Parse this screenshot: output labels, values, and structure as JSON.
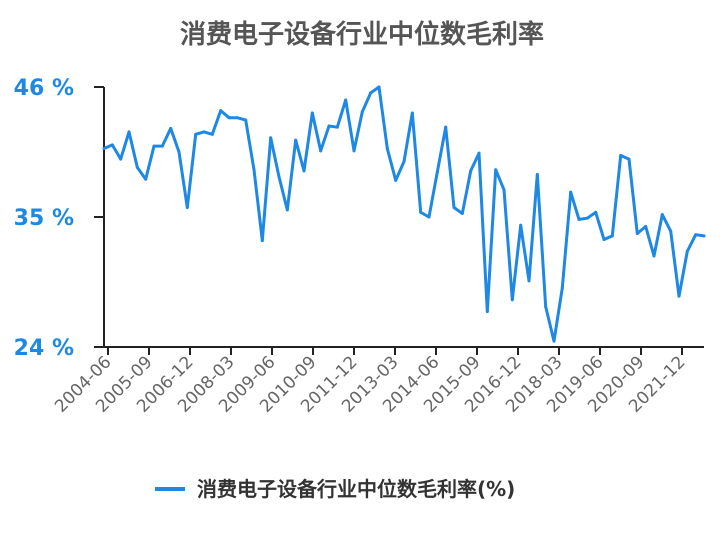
{
  "chart_data": {
    "type": "line",
    "title": "消费电子设备行业中位数毛利率",
    "xlabel": "",
    "ylabel": "",
    "ylim": [
      24,
      46
    ],
    "y_ticks": [
      "24 %",
      "35 %",
      "46 %"
    ],
    "y_tick_values": [
      24,
      35,
      46
    ],
    "x_tick_labels": [
      "2004-06",
      "2005-09",
      "2006-12",
      "2008-03",
      "2009-06",
      "2010-09",
      "2011-12",
      "2013-03",
      "2014-06",
      "2015-09",
      "2016-12",
      "2018-03",
      "2019-06",
      "2020-09",
      "2021-12"
    ],
    "grid": false,
    "legend": "bottom",
    "color": "#1e88e5",
    "series": [
      {
        "name": "消费电子设备行业中位数毛利率(%)",
        "values": [
          40.8,
          41.1,
          39.9,
          42.2,
          39.2,
          38.2,
          41.0,
          41.0,
          42.5,
          40.5,
          35.8,
          42.0,
          42.2,
          42.0,
          44.0,
          43.4,
          43.4,
          43.2,
          39.0,
          33.0,
          41.7,
          38.4,
          35.6,
          41.5,
          38.9,
          43.8,
          40.6,
          42.7,
          42.6,
          44.9,
          40.6,
          43.9,
          45.5,
          46.0,
          40.8,
          38.1,
          39.7,
          43.8,
          35.4,
          35.0,
          38.8,
          42.6,
          35.8,
          35.3,
          38.9,
          40.4,
          27.0,
          39.0,
          37.3,
          28.0,
          34.3,
          29.6,
          38.6,
          27.4,
          24.5,
          29.0,
          37.1,
          34.8,
          34.9,
          35.4,
          33.1,
          33.4,
          40.2,
          39.9,
          33.6,
          34.2,
          31.7,
          35.2,
          33.8,
          28.3,
          32.1,
          33.5,
          33.4
        ]
      }
    ]
  }
}
